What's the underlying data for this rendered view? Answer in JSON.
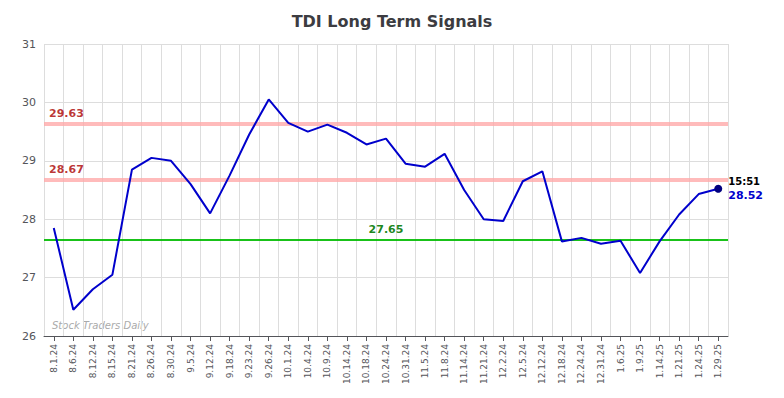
{
  "chart_data": {
    "type": "line",
    "title": "TDI Long Term Signals",
    "categories": [
      "8.1.24",
      "8.6.24",
      "8.12.24",
      "8.15.24",
      "8.21.24",
      "8.26.24",
      "8.30.24",
      "9.5.24",
      "9.12.24",
      "9.18.24",
      "9.23.24",
      "9.26.24",
      "10.1.24",
      "10.4.24",
      "10.9.24",
      "10.14.24",
      "10.18.24",
      "10.24.24",
      "10.31.24",
      "11.5.24",
      "11.8.24",
      "11.14.24",
      "11.21.24",
      "12.2.24",
      "12.5.24",
      "12.12.24",
      "12.18.24",
      "12.24.24",
      "12.31.24",
      "1.6.25",
      "1.9.25",
      "1.14.25",
      "1.21.25",
      "1.24.25",
      "1.29.25"
    ],
    "values": [
      27.85,
      26.45,
      26.8,
      27.05,
      28.85,
      29.05,
      29.0,
      28.6,
      28.1,
      28.75,
      29.45,
      30.05,
      29.65,
      29.5,
      29.62,
      29.48,
      29.28,
      29.38,
      28.95,
      28.9,
      29.12,
      28.5,
      28.0,
      27.97,
      28.65,
      28.82,
      27.62,
      27.68,
      27.58,
      27.63,
      27.08,
      27.62,
      28.08,
      28.43,
      28.52
    ],
    "color": "#0000cc",
    "ylim": [
      26,
      31
    ],
    "yticks": [
      26,
      27,
      28,
      29,
      30,
      31
    ],
    "grid": true,
    "hlines": [
      {
        "value": 29.63,
        "label": "29.63",
        "color": "#ffaaaa",
        "label_color": "#aa0000"
      },
      {
        "value": 28.67,
        "label": "28.67",
        "color": "#ffaaaa",
        "label_color": "#aa0000"
      },
      {
        "value": 27.65,
        "label": "27.65",
        "color": "#00bb00",
        "label_color": "#007700"
      }
    ],
    "end_point": {
      "color": "#000080",
      "time_label": "15:51",
      "value_label": "28.52"
    },
    "watermark": {
      "text": "Stock Traders Daily",
      "color": "#aaaaaa"
    }
  }
}
